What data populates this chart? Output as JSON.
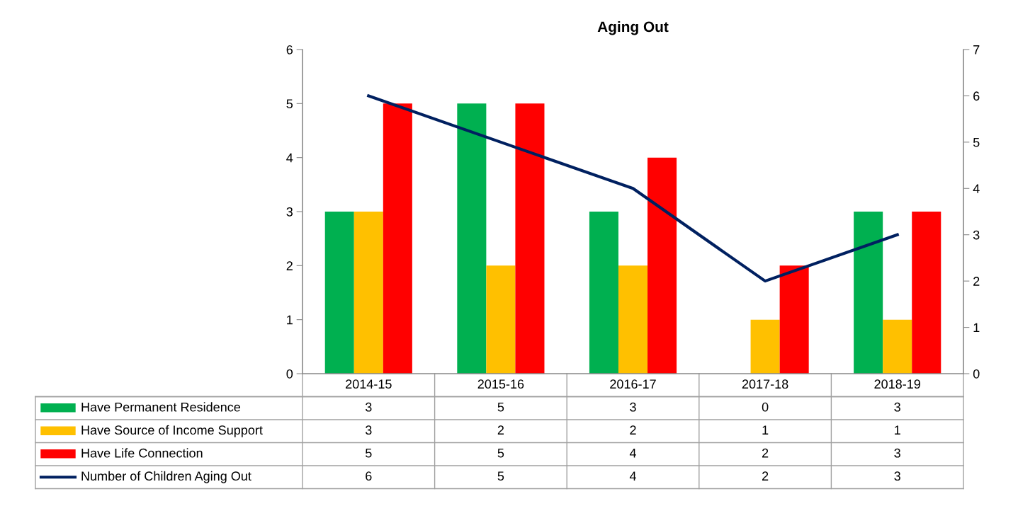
{
  "chart_data": {
    "type": "bar",
    "title": "Aging Out",
    "categories": [
      "2014-15",
      "2015-16",
      "2016-17",
      "2017-18",
      "2018-19"
    ],
    "series": [
      {
        "name": "Have Permanent Residence",
        "color": "#00b050",
        "values": [
          3,
          5,
          3,
          0,
          3
        ]
      },
      {
        "name": "Have Source of Income Support",
        "color": "#ffc000",
        "values": [
          3,
          2,
          2,
          1,
          1
        ]
      },
      {
        "name": "Have Life Connection",
        "color": "#ff0000",
        "values": [
          5,
          5,
          4,
          2,
          3
        ]
      },
      {
        "name": "Number of Children Aging Out",
        "color": "#002060",
        "type": "line",
        "axis": "y2",
        "values": [
          6,
          5,
          4,
          2,
          3
        ]
      }
    ],
    "ylim": [
      0,
      6
    ],
    "yticks": [
      0,
      1,
      2,
      3,
      4,
      5,
      6
    ],
    "y2lim": [
      0,
      7
    ],
    "y2ticks": [
      0,
      1,
      2,
      3,
      4,
      5,
      6,
      7
    ],
    "data_labels": true,
    "legend": "bottom",
    "grid": false,
    "marker": "none",
    "line_style": "solid"
  }
}
